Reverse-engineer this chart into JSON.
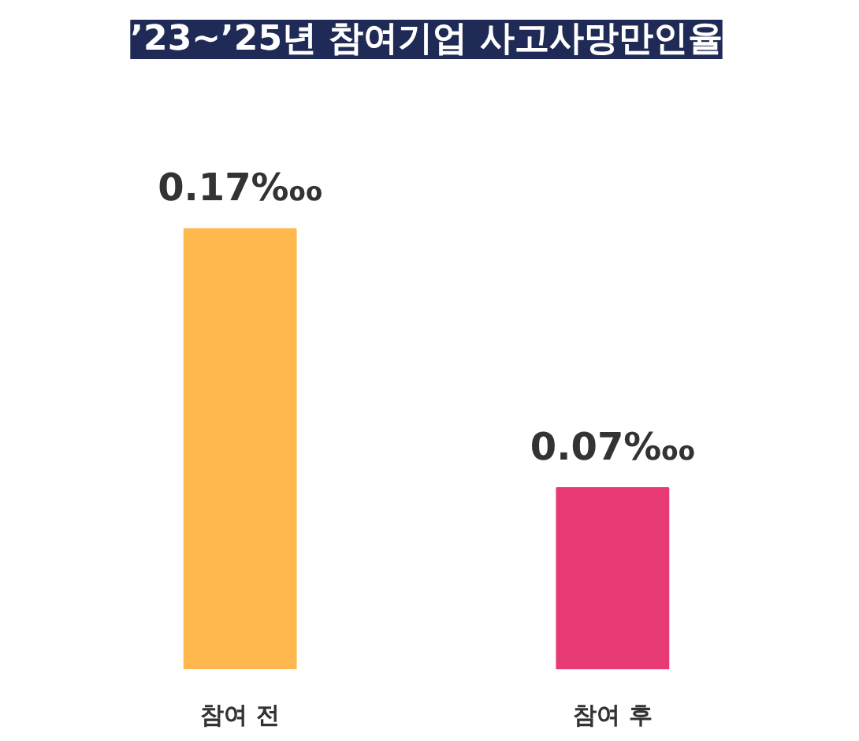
{
  "chart_data": {
    "type": "bar",
    "title": "’23~’25년 참여기업 사고사망만인율",
    "categories": [
      "참여 전",
      "참여 후"
    ],
    "values": [
      0.17,
      0.07
    ],
    "colors": [
      "#ffb84d",
      "#e83a74"
    ],
    "value_labels": [
      "0.17‱",
      "0.07‱"
    ],
    "grid": false
  }
}
